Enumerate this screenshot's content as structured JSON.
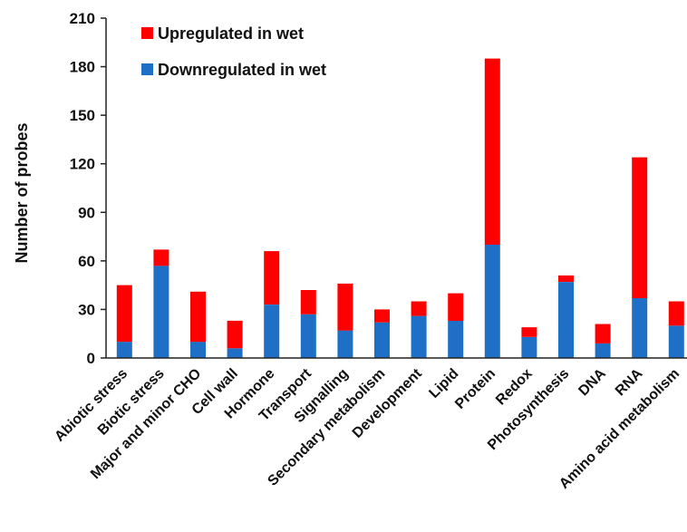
{
  "chart_data": {
    "type": "bar",
    "stacked": true,
    "categories": [
      "Abiotic stress",
      "Biotic stress",
      "Major and minor CHO",
      "Cell wall",
      "Hormone",
      "Transport",
      "Signalling",
      "Secondary metabolism",
      "Development",
      "Lipid",
      "Protein",
      "Redox",
      "Photosynthesis",
      "DNA",
      "RNA",
      "Amino acid metabolism"
    ],
    "series": [
      {
        "name": "Downregulated in wet",
        "color": "#1f6fc6",
        "values": [
          10,
          57,
          10,
          6,
          33,
          27,
          17,
          22,
          26,
          23,
          70,
          13,
          47,
          9,
          37,
          20
        ]
      },
      {
        "name": "Upregulated in wet",
        "color": "#ff0000",
        "values": [
          35,
          10,
          31,
          17,
          33,
          15,
          29,
          8,
          9,
          17,
          115,
          6,
          4,
          12,
          87,
          15
        ]
      }
    ],
    "xlabel": "",
    "ylabel": "Number of probes",
    "ylim": [
      0,
      210
    ],
    "yticks": [
      0,
      30,
      60,
      90,
      120,
      150,
      180,
      210
    ],
    "grid": false,
    "legend_position": "top-left",
    "legend_order": [
      "Upregulated in wet",
      "Downregulated in wet"
    ]
  }
}
